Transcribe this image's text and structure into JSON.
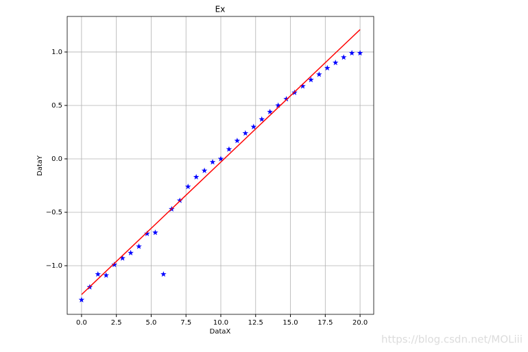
{
  "chart_data": {
    "type": "scatter",
    "title": "Ex",
    "xlabel": "DataX",
    "ylabel": "DataY",
    "xlim": [
      -1.03,
      20.98
    ],
    "ylim": [
      -1.455,
      1.333
    ],
    "grid": true,
    "xticks": [
      {
        "value": 0,
        "label": "0.0"
      },
      {
        "value": 2.5,
        "label": "2.5"
      },
      {
        "value": 5,
        "label": "5.0"
      },
      {
        "value": 7.5,
        "label": "7.5"
      },
      {
        "value": 10,
        "label": "10.0"
      },
      {
        "value": 12.5,
        "label": "12.5"
      },
      {
        "value": 15,
        "label": "15.0"
      },
      {
        "value": 17.5,
        "label": "17.5"
      },
      {
        "value": 20,
        "label": "20.0"
      }
    ],
    "yticks": [
      {
        "value": -1,
        "label": "−1.0"
      },
      {
        "value": -0.5,
        "label": "−0.5"
      },
      {
        "value": 0,
        "label": "0.0"
      },
      {
        "value": 0.5,
        "label": "0.5"
      },
      {
        "value": 1,
        "label": "1.0"
      }
    ],
    "series": [
      {
        "color": "#0000ff",
        "marker": "*",
        "x": [
          0,
          0.588,
          1.176,
          1.765,
          2.353,
          2.941,
          3.529,
          4.118,
          4.706,
          5.294,
          5.882,
          6.471,
          7.059,
          7.647,
          8.235,
          8.824,
          9.412,
          10,
          10.588,
          11.176,
          11.765,
          12.353,
          12.941,
          13.529,
          14.118,
          14.706,
          15.294,
          15.882,
          16.471,
          17.059,
          17.647,
          18.235,
          18.824,
          19.412,
          20
        ],
        "values": [
          -1.32,
          -1.2,
          -1.08,
          -1.09,
          -0.99,
          -0.93,
          -0.88,
          -0.82,
          -0.7,
          -0.69,
          -1.08,
          -0.47,
          -0.39,
          -0.26,
          -0.17,
          -0.11,
          -0.03,
          0,
          0.09,
          0.17,
          0.24,
          0.3,
          0.37,
          0.44,
          0.5,
          0.56,
          0.62,
          0.68,
          0.74,
          0.79,
          0.85,
          0.9,
          0.95,
          0.99,
          0.99
        ]
      },
      {
        "color": "#ff0000",
        "marker": "line",
        "x": [
          0,
          20
        ],
        "values": [
          -1.27,
          1.21
        ]
      }
    ]
  },
  "watermark": "https://blog.csdn.net/MOLiii"
}
